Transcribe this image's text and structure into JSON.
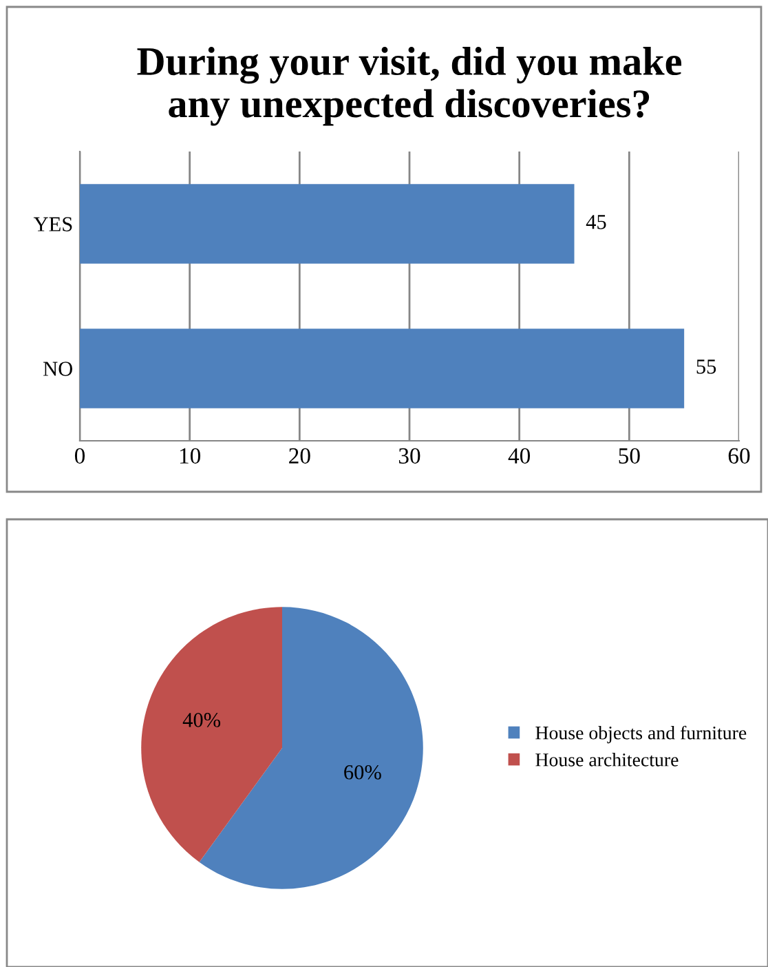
{
  "chart_data": [
    {
      "type": "bar",
      "title": "During your visit, did you make\nany unexpected discoveries?",
      "orientation": "horizontal",
      "categories": [
        "YES",
        "NO"
      ],
      "values": [
        45,
        55
      ],
      "color": "#4f81bd",
      "xlim": [
        0,
        60
      ],
      "xticks": [
        0,
        10,
        20,
        30,
        40,
        50,
        60
      ],
      "grid": "x",
      "data_labels": true
    },
    {
      "type": "pie",
      "categories": [
        "House objects and furniture",
        "House architecture"
      ],
      "values": [
        60,
        40
      ],
      "colors": [
        "#4f81bd",
        "#c0504d"
      ],
      "value_labels": [
        "60%",
        "40%"
      ],
      "legend": "right"
    }
  ]
}
